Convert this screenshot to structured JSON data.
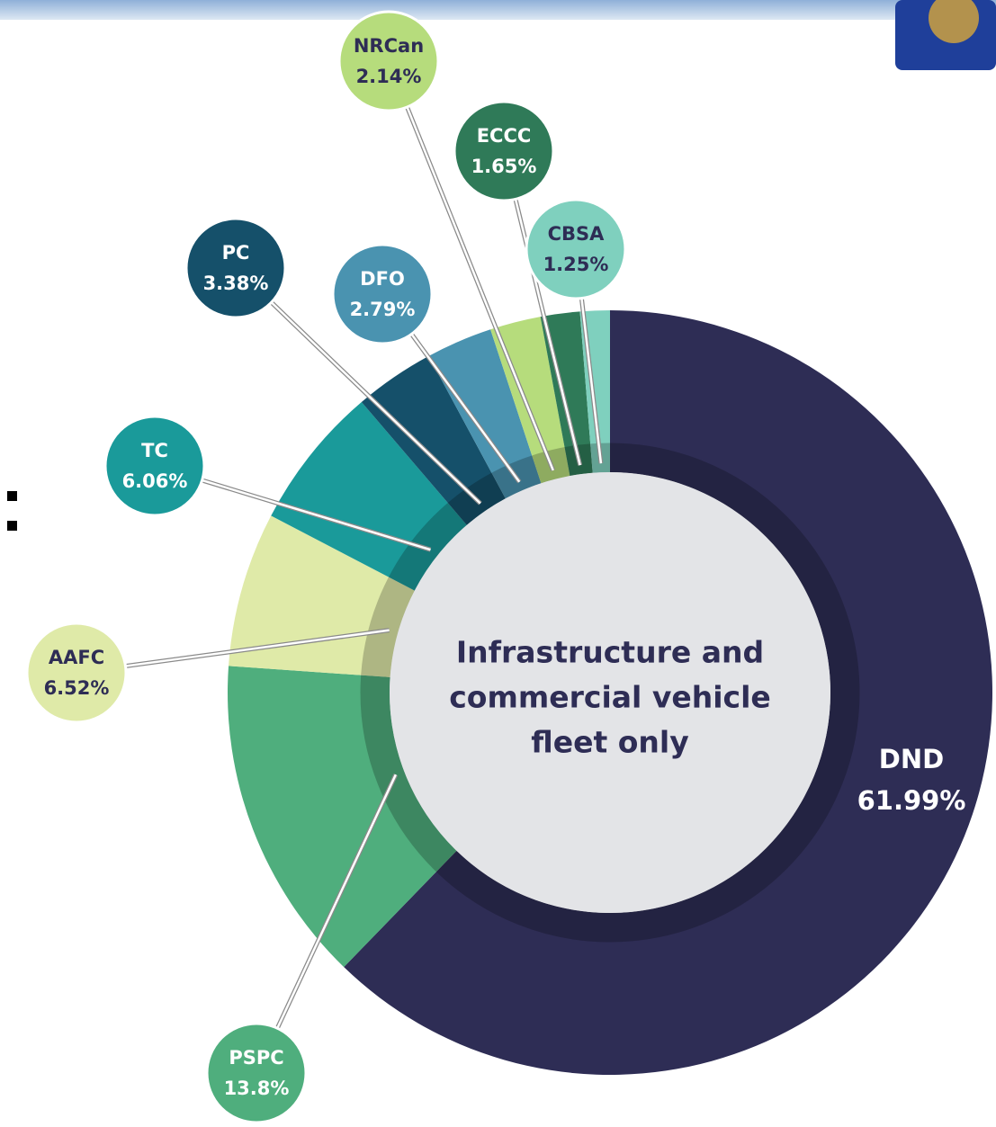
{
  "chart_data": {
    "type": "donut",
    "center_text": [
      "Infrastructure and",
      "commercial vehicle",
      "fleet only"
    ],
    "categories": [
      "DND",
      "PSPC",
      "AAFC",
      "TC",
      "PC",
      "DFO",
      "NRCan",
      "ECCC",
      "CBSA"
    ],
    "values": [
      61.99,
      13.8,
      6.52,
      6.06,
      3.38,
      2.79,
      2.14,
      1.65,
      1.25
    ],
    "value_labels": [
      "61.99%",
      "13.8%",
      "6.52%",
      "6.06%",
      "3.38%",
      "2.79%",
      "2.14%",
      "1.65%",
      "1.25%"
    ],
    "colors": [
      "#2e2d55",
      "#4fae7d",
      "#dfeaa8",
      "#1a9a9a",
      "#15506a",
      "#4a93b0",
      "#b6dc7c",
      "#2f7a58",
      "#7fd0be"
    ]
  }
}
